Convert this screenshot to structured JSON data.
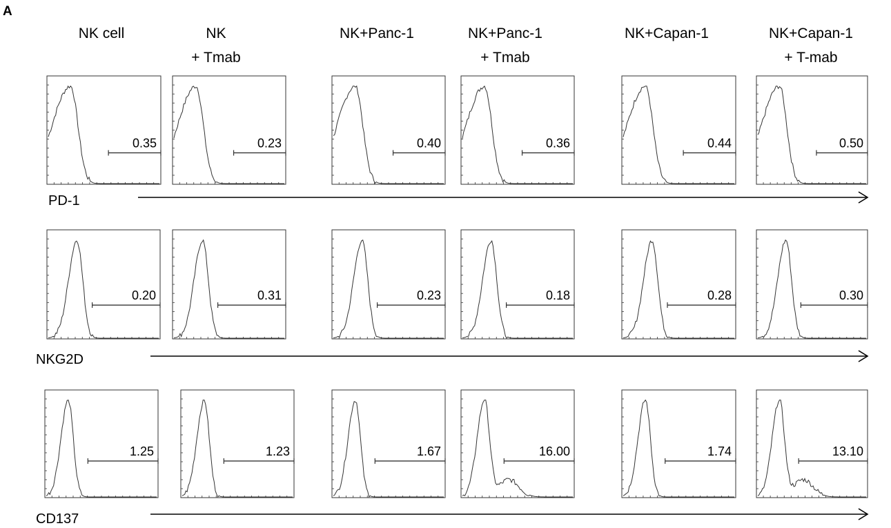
{
  "panel_label": "A",
  "chart_data": {
    "type": "histogram-grid",
    "columns": [
      {
        "line1": "NK cell",
        "line2": ""
      },
      {
        "line1": "NK",
        "line2": "+ Tmab"
      },
      {
        "line1": "NK+Panc-1",
        "line2": ""
      },
      {
        "line1": "NK+Panc-1",
        "line2": "+ Tmab"
      },
      {
        "line1": "NK+Capan-1",
        "line2": ""
      },
      {
        "line1": "NK+Capan-1",
        "line2": "+ T-mab"
      }
    ],
    "rows": [
      {
        "marker": "PD-1",
        "gate_values": [
          "0.35",
          "0.23",
          "0.40",
          "0.36",
          "0.44",
          "0.50"
        ]
      },
      {
        "marker": "NKG2D",
        "gate_values": [
          "0.20",
          "0.31",
          "0.23",
          "0.18",
          "0.28",
          "0.30"
        ]
      },
      {
        "marker": "CD137",
        "gate_values": [
          "1.25",
          "1.23",
          "1.67",
          "16.00",
          "1.74",
          "13.10"
        ]
      }
    ],
    "line_color": "#333333"
  }
}
